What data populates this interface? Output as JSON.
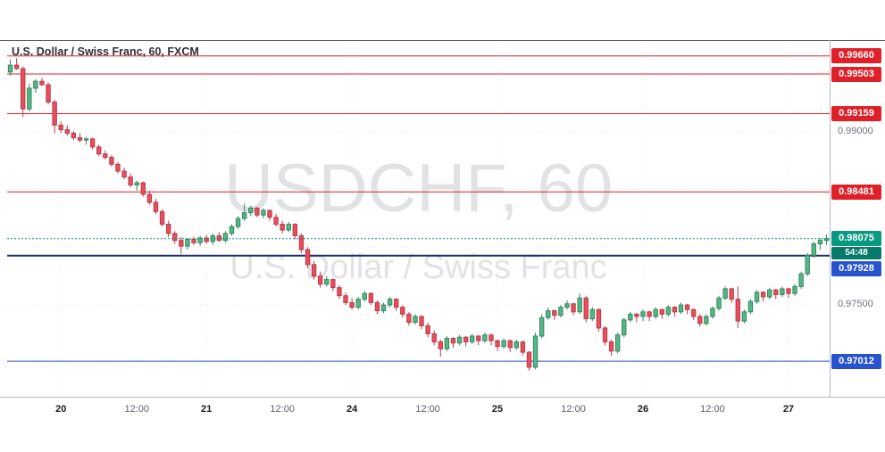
{
  "legend": {
    "text": "U.S. Dollar / Swiss Franc, 60, FXCM"
  },
  "watermark": {
    "title": "USDCHF, 60",
    "subtitle": "U.S. Dollar / Swiss Franc"
  },
  "colors": {
    "up": "#53b987",
    "up_border": "#36845f",
    "down": "#eb4d5c",
    "down_border": "#b63d49",
    "grid": "#e9ebef",
    "frame": "#50535b",
    "axis_border": "#b6b9c2",
    "last": "#089981",
    "last_dark": "#067a6b",
    "level_red": "#e02028",
    "level_blue": "#2753cf",
    "level_navy": "#1a2e6e"
  },
  "chart_data": {
    "type": "candlestick",
    "symbol": "USDCHF",
    "timeframe": "60",
    "provider": "FXCM",
    "title": "USDCHF, 60",
    "price_range": [
      0.96704,
      0.99797
    ],
    "grid_prices": [
      0.995,
      0.99,
      0.985,
      0.98,
      0.975,
      0.97
    ],
    "price_ticks": [
      {
        "label": "0.99000",
        "price": 0.99
      },
      {
        "label": "0.97500",
        "price": 0.975
      }
    ],
    "time_ticks": [
      {
        "label": "20",
        "index": 8,
        "major": true
      },
      {
        "label": "12:00",
        "index": 20,
        "major": false
      },
      {
        "label": "21",
        "index": 31,
        "major": true
      },
      {
        "label": "12:00",
        "index": 43,
        "major": false
      },
      {
        "label": "24",
        "index": 54,
        "major": true
      },
      {
        "label": "12:00",
        "index": 66,
        "major": false
      },
      {
        "label": "25",
        "index": 77,
        "major": true
      },
      {
        "label": "12:00",
        "index": 89,
        "major": false
      },
      {
        "label": "26",
        "index": 100,
        "major": true
      },
      {
        "label": "12:00",
        "index": 111,
        "major": false
      },
      {
        "label": "27",
        "index": 123,
        "major": true
      }
    ],
    "levels": [
      {
        "label": "0.99660",
        "price": 0.9966,
        "line_color": "#e02028",
        "line_width": 1,
        "badge_color": "#e02028"
      },
      {
        "label": "0.99503",
        "price": 0.99503,
        "line_color": "#e02028",
        "line_width": 1,
        "badge_color": "#e02028"
      },
      {
        "label": "0.99159",
        "price": 0.99159,
        "line_color": "#e02028",
        "line_width": 1,
        "badge_color": "#e02028"
      },
      {
        "label": "0.98481",
        "price": 0.98481,
        "line_color": "#e02028",
        "line_width": 1,
        "badge_color": "#e02028"
      },
      {
        "label": "0.97928",
        "price": 0.97928,
        "line_color": "#1a2e6e",
        "line_width": 2,
        "badge_color": "#2753cf"
      },
      {
        "label": "0.97012",
        "price": 0.97012,
        "line_color": "#3353c4",
        "line_width": 1,
        "badge_color": "#2753cf"
      }
    ],
    "last_price": {
      "label": "0.98075",
      "price": 0.98075,
      "countdown": "54:48"
    },
    "candles": [
      [
        0.9952,
        0.9963,
        0.9949,
        0.9958
      ],
      [
        0.9958,
        0.9964,
        0.9954,
        0.9955
      ],
      [
        0.9955,
        0.9957,
        0.9913,
        0.992
      ],
      [
        0.992,
        0.9942,
        0.9918,
        0.9938
      ],
      [
        0.9938,
        0.9946,
        0.9934,
        0.9944
      ],
      [
        0.9944,
        0.9947,
        0.994,
        0.9941
      ],
      [
        0.9941,
        0.9943,
        0.9924,
        0.9926
      ],
      [
        0.9926,
        0.9928,
        0.9899,
        0.9906
      ],
      [
        0.9906,
        0.9909,
        0.9899,
        0.9902
      ],
      [
        0.9902,
        0.9906,
        0.9897,
        0.9899
      ],
      [
        0.9899,
        0.9901,
        0.9893,
        0.9895
      ],
      [
        0.9895,
        0.9899,
        0.9891,
        0.9893
      ],
      [
        0.9893,
        0.9896,
        0.9889,
        0.9894
      ],
      [
        0.9894,
        0.9895,
        0.9885,
        0.9887
      ],
      [
        0.9887,
        0.9889,
        0.9879,
        0.9881
      ],
      [
        0.9881,
        0.9884,
        0.9876,
        0.9878
      ],
      [
        0.9878,
        0.988,
        0.987,
        0.9872
      ],
      [
        0.9872,
        0.9874,
        0.9864,
        0.9866
      ],
      [
        0.9866,
        0.9869,
        0.9859,
        0.9861
      ],
      [
        0.9861,
        0.9864,
        0.9852,
        0.9854
      ],
      [
        0.9854,
        0.9858,
        0.9849,
        0.9856
      ],
      [
        0.9856,
        0.9857,
        0.9844,
        0.9846
      ],
      [
        0.9846,
        0.9849,
        0.9837,
        0.9839
      ],
      [
        0.9839,
        0.9842,
        0.9829,
        0.9831
      ],
      [
        0.9831,
        0.9833,
        0.9818,
        0.982
      ],
      [
        0.982,
        0.9823,
        0.9809,
        0.9812
      ],
      [
        0.9812,
        0.9814,
        0.9803,
        0.9806
      ],
      [
        0.9806,
        0.9809,
        0.9794,
        0.9801
      ],
      [
        0.9801,
        0.9808,
        0.9798,
        0.9807
      ],
      [
        0.9807,
        0.9809,
        0.9802,
        0.9804
      ],
      [
        0.9804,
        0.981,
        0.9801,
        0.9808
      ],
      [
        0.9808,
        0.9811,
        0.9803,
        0.9805
      ],
      [
        0.9805,
        0.9812,
        0.9802,
        0.981
      ],
      [
        0.981,
        0.9813,
        0.9805,
        0.9806
      ],
      [
        0.9806,
        0.9814,
        0.9804,
        0.9812
      ],
      [
        0.9812,
        0.982,
        0.981,
        0.9818
      ],
      [
        0.9818,
        0.9827,
        0.9816,
        0.9825
      ],
      [
        0.9825,
        0.9838,
        0.9823,
        0.983
      ],
      [
        0.983,
        0.9836,
        0.9827,
        0.9834
      ],
      [
        0.9834,
        0.9835,
        0.9826,
        0.9828
      ],
      [
        0.9828,
        0.9834,
        0.9825,
        0.9832
      ],
      [
        0.9832,
        0.9833,
        0.9823,
        0.9826
      ],
      [
        0.9826,
        0.9829,
        0.9818,
        0.982
      ],
      [
        0.982,
        0.9823,
        0.9812,
        0.9815
      ],
      [
        0.9815,
        0.9822,
        0.9813,
        0.982
      ],
      [
        0.982,
        0.9821,
        0.9807,
        0.981
      ],
      [
        0.981,
        0.9812,
        0.9795,
        0.9798
      ],
      [
        0.9798,
        0.98,
        0.9782,
        0.9785
      ],
      [
        0.9785,
        0.9788,
        0.9772,
        0.9775
      ],
      [
        0.9775,
        0.9779,
        0.9765,
        0.9768
      ],
      [
        0.9768,
        0.9775,
        0.9766,
        0.9772
      ],
      [
        0.9772,
        0.9773,
        0.9762,
        0.9765
      ],
      [
        0.9765,
        0.9767,
        0.9755,
        0.9758
      ],
      [
        0.9758,
        0.9761,
        0.975,
        0.9752
      ],
      [
        0.9752,
        0.9756,
        0.9746,
        0.9748
      ],
      [
        0.9748,
        0.9757,
        0.9746,
        0.9755
      ],
      [
        0.9755,
        0.9762,
        0.9753,
        0.976
      ],
      [
        0.976,
        0.9761,
        0.975,
        0.9752
      ],
      [
        0.9752,
        0.9754,
        0.9742,
        0.9745
      ],
      [
        0.9745,
        0.9752,
        0.9743,
        0.975
      ],
      [
        0.975,
        0.9757,
        0.9748,
        0.9755
      ],
      [
        0.9755,
        0.9756,
        0.9745,
        0.9748
      ],
      [
        0.9748,
        0.975,
        0.9739,
        0.9742
      ],
      [
        0.9742,
        0.9744,
        0.9732,
        0.9735
      ],
      [
        0.9735,
        0.9742,
        0.9733,
        0.974
      ],
      [
        0.974,
        0.9741,
        0.9729,
        0.9732
      ],
      [
        0.9732,
        0.9735,
        0.9722,
        0.9725
      ],
      [
        0.9725,
        0.9728,
        0.9715,
        0.9718
      ],
      [
        0.9718,
        0.972,
        0.9705,
        0.9712
      ],
      [
        0.9712,
        0.9723,
        0.971,
        0.9721
      ],
      [
        0.9721,
        0.9722,
        0.9713,
        0.9717
      ],
      [
        0.9717,
        0.9724,
        0.9715,
        0.9722
      ],
      [
        0.9722,
        0.9723,
        0.9714,
        0.9718
      ],
      [
        0.9718,
        0.9725,
        0.9716,
        0.9723
      ],
      [
        0.9723,
        0.9724,
        0.9715,
        0.9719
      ],
      [
        0.9719,
        0.9726,
        0.9717,
        0.9724
      ],
      [
        0.9724,
        0.9725,
        0.9715,
        0.9719
      ],
      [
        0.9719,
        0.972,
        0.971,
        0.9714
      ],
      [
        0.9714,
        0.9721,
        0.9712,
        0.9719
      ],
      [
        0.9719,
        0.972,
        0.9709,
        0.9713
      ],
      [
        0.9713,
        0.972,
        0.9711,
        0.9718
      ],
      [
        0.9718,
        0.9719,
        0.9706,
        0.9709
      ],
      [
        0.9709,
        0.971,
        0.9693,
        0.9696
      ],
      [
        0.9696,
        0.9726,
        0.9694,
        0.9723
      ],
      [
        0.9723,
        0.9742,
        0.9721,
        0.9739
      ],
      [
        0.9739,
        0.9748,
        0.9737,
        0.9745
      ],
      [
        0.9745,
        0.9746,
        0.9737,
        0.9741
      ],
      [
        0.9741,
        0.975,
        0.9739,
        0.9748
      ],
      [
        0.9748,
        0.9754,
        0.9746,
        0.9751
      ],
      [
        0.9751,
        0.9752,
        0.9741,
        0.9744
      ],
      [
        0.9744,
        0.976,
        0.9742,
        0.9756
      ],
      [
        0.9756,
        0.9758,
        0.9735,
        0.9738
      ],
      [
        0.9738,
        0.9748,
        0.9736,
        0.9746
      ],
      [
        0.9746,
        0.9747,
        0.9727,
        0.973
      ],
      [
        0.973,
        0.9732,
        0.9715,
        0.9718
      ],
      [
        0.9718,
        0.972,
        0.9706,
        0.971
      ],
      [
        0.971,
        0.9726,
        0.9708,
        0.9724
      ],
      [
        0.9724,
        0.9739,
        0.9722,
        0.9737
      ],
      [
        0.9737,
        0.9744,
        0.9735,
        0.9742
      ],
      [
        0.9742,
        0.9743,
        0.9735,
        0.974
      ],
      [
        0.974,
        0.9746,
        0.9736,
        0.9744
      ],
      [
        0.9744,
        0.9745,
        0.9736,
        0.974
      ],
      [
        0.974,
        0.9748,
        0.9738,
        0.9746
      ],
      [
        0.9746,
        0.9747,
        0.9738,
        0.9742
      ],
      [
        0.9742,
        0.975,
        0.974,
        0.9748
      ],
      [
        0.9748,
        0.9749,
        0.974,
        0.9744
      ],
      [
        0.9744,
        0.9752,
        0.9742,
        0.975
      ],
      [
        0.975,
        0.9751,
        0.9742,
        0.9746
      ],
      [
        0.9746,
        0.9747,
        0.9737,
        0.974
      ],
      [
        0.974,
        0.9742,
        0.9731,
        0.9734
      ],
      [
        0.9734,
        0.9742,
        0.9732,
        0.974
      ],
      [
        0.974,
        0.9749,
        0.9738,
        0.9747
      ],
      [
        0.9747,
        0.9758,
        0.9745,
        0.9756
      ],
      [
        0.9756,
        0.9766,
        0.9754,
        0.9764
      ],
      [
        0.9764,
        0.9765,
        0.9752,
        0.9755
      ],
      [
        0.9755,
        0.9766,
        0.973,
        0.9736
      ],
      [
        0.9736,
        0.9746,
        0.9734,
        0.9744
      ],
      [
        0.9744,
        0.9755,
        0.9742,
        0.9753
      ],
      [
        0.9753,
        0.9763,
        0.9751,
        0.9761
      ],
      [
        0.9761,
        0.9762,
        0.9753,
        0.9757
      ],
      [
        0.9757,
        0.9765,
        0.9755,
        0.9763
      ],
      [
        0.9763,
        0.9764,
        0.9755,
        0.9759
      ],
      [
        0.9759,
        0.9766,
        0.9757,
        0.9764
      ],
      [
        0.9764,
        0.9765,
        0.9756,
        0.976
      ],
      [
        0.976,
        0.9768,
        0.9758,
        0.9766
      ],
      [
        0.9766,
        0.9779,
        0.9764,
        0.9777
      ],
      [
        0.9777,
        0.9795,
        0.9775,
        0.9793
      ],
      [
        0.9793,
        0.9805,
        0.9791,
        0.9803
      ],
      [
        0.9803,
        0.9808,
        0.9798,
        0.9806
      ],
      [
        0.9806,
        0.9811,
        0.9802,
        0.98075
      ]
    ]
  }
}
